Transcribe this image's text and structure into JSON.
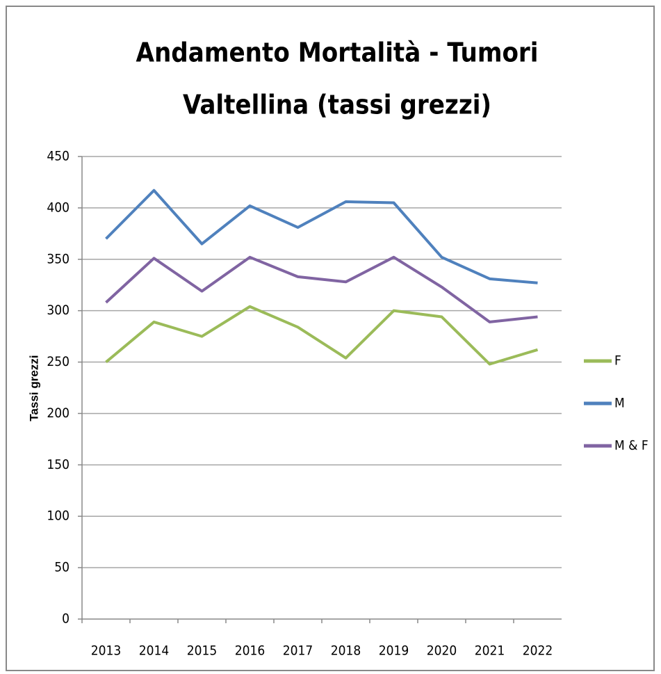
{
  "chart_data": {
    "type": "line",
    "title": "Andamento Mortalità - Tumori",
    "subtitle": "Valtellina (tassi grezzi)",
    "y_label": "Tassi grezzi",
    "categories": [
      "2013",
      "2014",
      "2015",
      "2016",
      "2017",
      "2018",
      "2019",
      "2020",
      "2021",
      "2022"
    ],
    "series": [
      {
        "name": "F",
        "color": "#9bbb59",
        "values": [
          250,
          289,
          275,
          304,
          284,
          254,
          300,
          294,
          248,
          262
        ]
      },
      {
        "name": "M",
        "color": "#4f81bd",
        "values": [
          370,
          417,
          365,
          402,
          381,
          406,
          405,
          352,
          331,
          327
        ]
      },
      {
        "name": "M & F",
        "color": "#8064a2",
        "values": [
          308,
          351,
          319,
          352,
          333,
          328,
          352,
          323,
          289,
          294
        ]
      }
    ],
    "ylim": [
      0,
      450
    ],
    "yticks": [
      0,
      50,
      100,
      150,
      200,
      250,
      300,
      350,
      400,
      450
    ],
    "grid": true,
    "legend": "right"
  }
}
